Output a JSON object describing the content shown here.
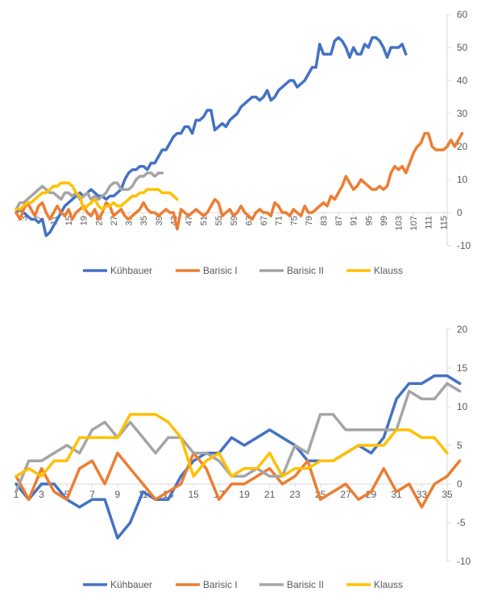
{
  "colors": {
    "Kühbauer": "#4472C4",
    "Barisic I": "#ED7D31",
    "Barisic II": "#A5A5A5",
    "Klauss": "#FFC000",
    "axis": "#D9D9D9",
    "label": "#595959"
  },
  "chart_data": [
    {
      "type": "line",
      "title": "",
      "xlabel": "",
      "ylabel": "",
      "grid": false,
      "legend": "bottom",
      "ylim": [
        -10,
        60
      ],
      "yticks": [
        -10,
        0,
        10,
        20,
        30,
        40,
        50,
        60
      ],
      "xlim": [
        1,
        116
      ],
      "xticks": [
        "3",
        "7",
        "11",
        "15",
        "19",
        "23",
        "27",
        "31",
        "35",
        "39",
        "43",
        "47",
        "51",
        "55",
        "59",
        "63",
        "67",
        "71",
        "75",
        "79",
        "83",
        "87",
        "91",
        "95",
        "99",
        "103",
        "107",
        "111",
        "115"
      ],
      "series": [
        {
          "name": "Kühbauer",
          "values": [
            0,
            1,
            0,
            -1,
            -2,
            -2,
            -3,
            -2,
            -7,
            -6,
            -4,
            -2,
            0,
            2,
            3,
            4,
            5,
            6,
            5,
            6,
            7,
            6,
            5,
            5,
            4,
            5,
            5,
            6,
            7,
            10,
            12,
            13,
            13,
            14,
            14,
            13,
            15,
            15,
            17,
            19,
            19,
            21,
            23,
            24,
            24,
            26,
            26,
            24,
            28,
            28,
            29,
            31,
            31,
            25,
            26,
            27,
            26,
            28,
            29,
            30,
            32,
            33,
            34,
            35,
            35,
            34,
            35,
            37,
            34,
            35,
            37,
            38,
            39,
            40,
            40,
            38,
            39,
            40,
            42,
            44,
            44,
            51,
            48,
            48,
            48,
            52,
            53,
            52,
            50,
            47,
            50,
            48,
            48,
            51,
            50,
            53,
            53,
            52,
            50,
            47,
            50,
            50,
            50,
            51,
            48
          ]
        },
        {
          "name": "Barisic I",
          "values": [
            0,
            -2,
            1,
            3,
            1,
            -1,
            2,
            3,
            0,
            -2,
            0,
            2,
            0,
            -1,
            1,
            -2,
            0,
            1,
            2,
            0,
            -1,
            1,
            -2,
            0,
            3,
            2,
            -1,
            0,
            1,
            -1,
            -2,
            -1,
            0,
            1,
            3,
            1,
            0,
            0,
            -1,
            0,
            1,
            0,
            0,
            -5,
            1,
            0,
            -1,
            0,
            1,
            0,
            -1,
            0,
            2,
            4,
            3,
            -1,
            0,
            1,
            -1,
            0,
            2,
            0,
            -1,
            -2,
            0,
            1,
            0,
            0,
            -1,
            3,
            2,
            0,
            0,
            -1,
            1,
            0,
            -1,
            2,
            0,
            0,
            1,
            2,
            3,
            2,
            5,
            4,
            6,
            8,
            11,
            9,
            7,
            8,
            10,
            9,
            8,
            7,
            7,
            8,
            7,
            8,
            12,
            14,
            13,
            14,
            12,
            15,
            18,
            20,
            21,
            24,
            24,
            20,
            19,
            19,
            19,
            20,
            22,
            20,
            22,
            24
          ]
        },
        {
          "name": "Barisic II",
          "values": [
            1,
            3,
            3,
            4,
            5,
            6,
            7,
            8,
            7,
            6,
            6,
            5,
            4,
            6,
            6,
            5,
            6,
            4,
            5,
            6,
            4,
            5,
            4,
            5,
            6,
            8,
            9,
            9,
            7,
            7,
            7,
            8,
            10,
            11,
            11,
            12,
            12,
            11,
            12,
            12
          ]
        },
        {
          "name": "Klauss",
          "values": [
            1,
            1,
            2,
            3,
            3,
            4,
            5,
            6,
            6,
            7,
            8,
            8,
            9,
            9,
            9,
            8,
            6,
            5,
            1,
            2,
            3,
            4,
            2,
            1,
            2,
            2,
            3,
            2,
            2,
            3,
            4,
            5,
            5,
            6,
            6,
            7,
            7,
            7,
            7,
            6,
            6,
            6,
            5,
            4
          ]
        }
      ]
    },
    {
      "type": "line",
      "title": "",
      "xlabel": "",
      "ylabel": "",
      "grid": false,
      "legend": "bottom",
      "ylim": [
        -10,
        20
      ],
      "yticks": [
        -10,
        -5,
        0,
        5,
        10,
        15,
        20
      ],
      "xlim": [
        1,
        35
      ],
      "xticks": [
        "1",
        "3",
        "5",
        "7",
        "9",
        "11",
        "13",
        "15",
        "17",
        "19",
        "21",
        "23",
        "25",
        "27",
        "29",
        "31",
        "33",
        "35"
      ],
      "series": [
        {
          "name": "Kühbauer",
          "values": [
            0,
            -2,
            0,
            0,
            -2,
            -3,
            -2,
            -2,
            -7,
            -5,
            -1,
            -2,
            -2,
            1,
            3,
            4,
            4,
            6,
            5,
            6,
            7,
            6,
            5,
            3,
            3,
            3,
            4,
            5,
            4,
            6,
            11,
            13,
            13,
            14,
            14,
            13
          ]
        },
        {
          "name": "Barisic I",
          "values": [
            1,
            -2,
            2,
            -1,
            -2,
            2,
            3,
            0,
            4,
            2,
            0,
            -2,
            -1,
            0,
            4,
            2,
            -2,
            0,
            0,
            1,
            2,
            0,
            1,
            3,
            -2,
            -1,
            0,
            -2,
            -1,
            2,
            -1,
            0,
            -3,
            0,
            1,
            3
          ]
        },
        {
          "name": "Barisic II",
          "values": [
            -1,
            3,
            3,
            4,
            5,
            4,
            7,
            8,
            6,
            8,
            6,
            4,
            6,
            6,
            4,
            4,
            3,
            1,
            1,
            2,
            1,
            1,
            5,
            4,
            9,
            9,
            7,
            7,
            7,
            7,
            7,
            12,
            11,
            11,
            13,
            12
          ]
        },
        {
          "name": "Klauss",
          "values": [
            1,
            2,
            1,
            3,
            3,
            6,
            6,
            6,
            6,
            9,
            9,
            9,
            8,
            6,
            1,
            3,
            4,
            1,
            2,
            2,
            4,
            1,
            2,
            2,
            3,
            3,
            4,
            5,
            5,
            5,
            7,
            7,
            6,
            6,
            4
          ]
        }
      ]
    }
  ]
}
